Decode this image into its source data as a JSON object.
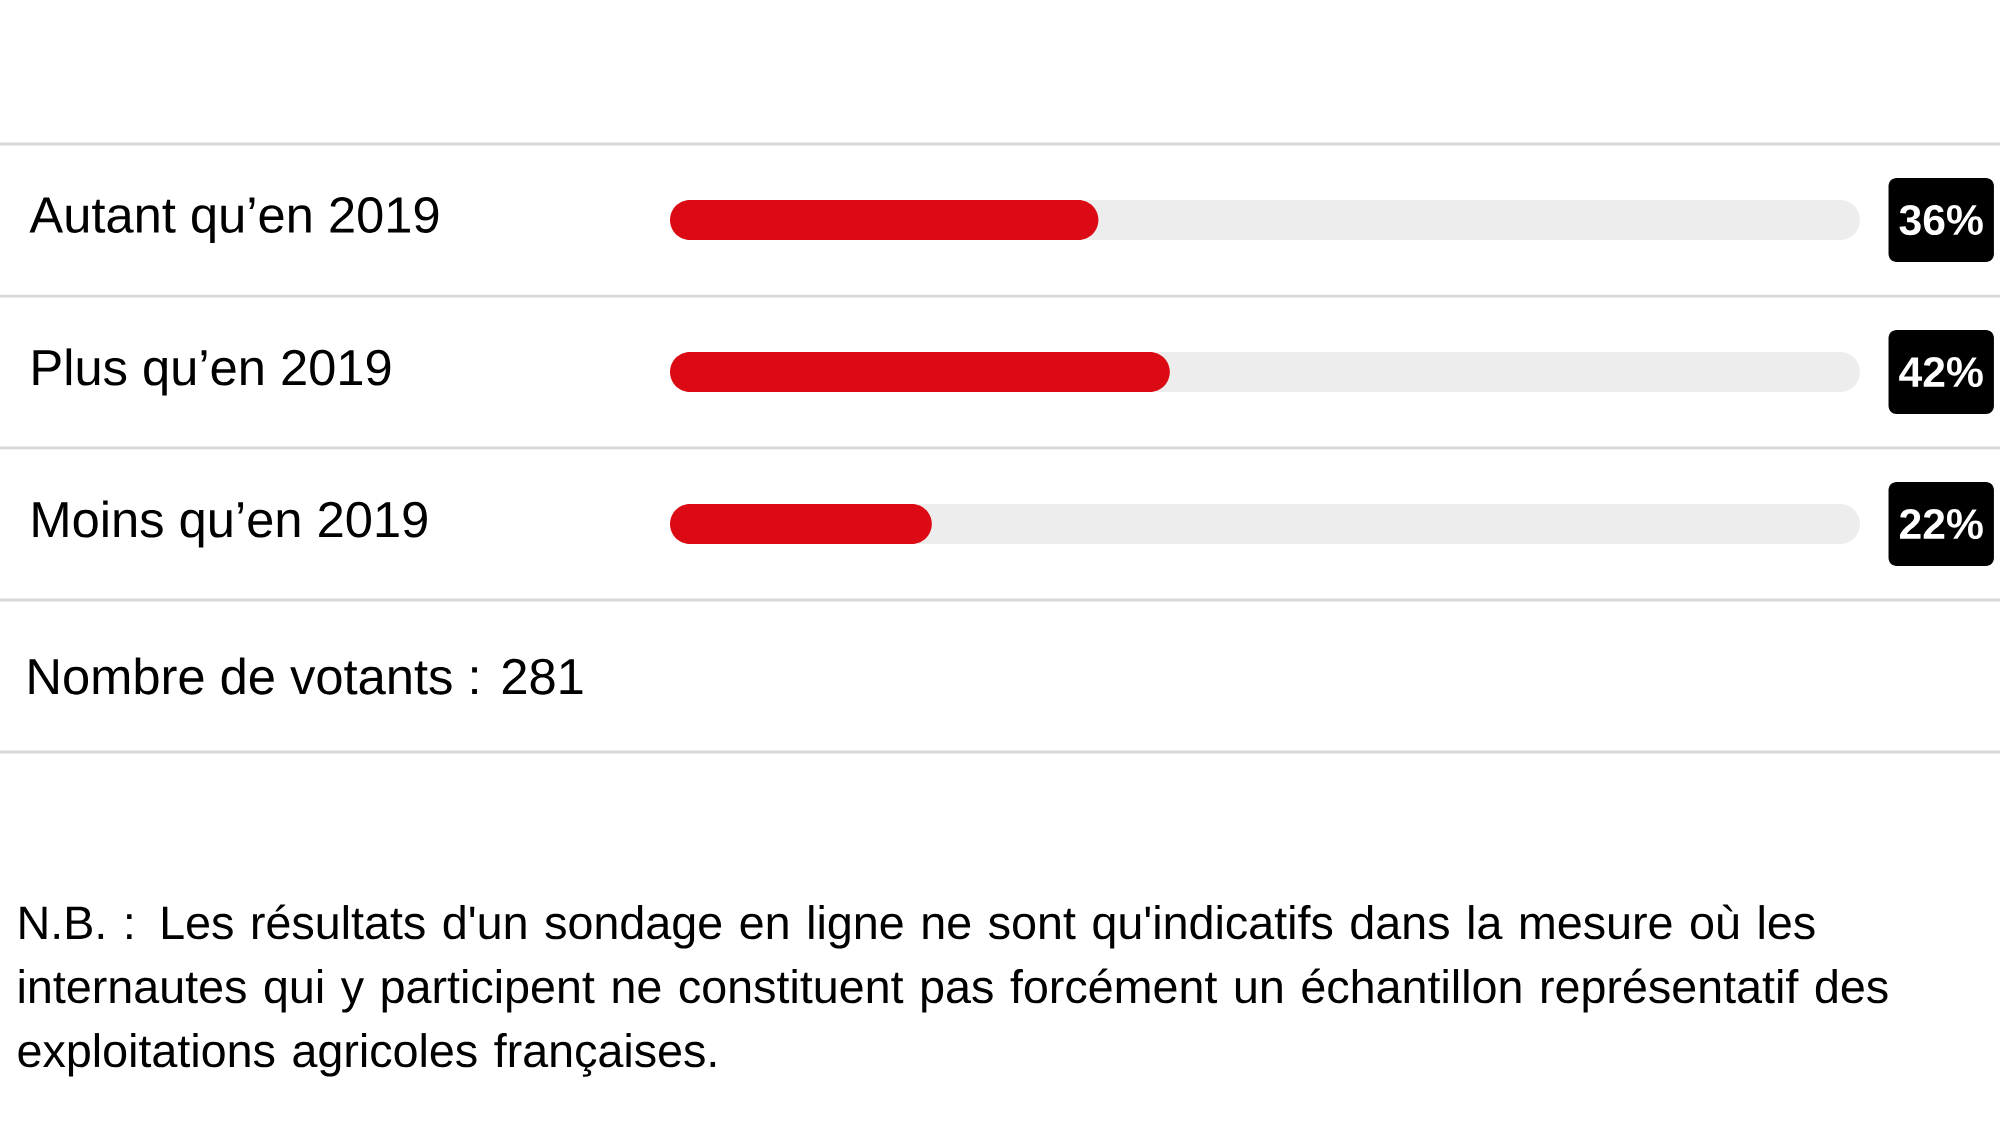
{
  "chart_data": {
    "type": "bar",
    "orientation": "horizontal",
    "categories": [
      "Autant qu’en 2019",
      "Plus qu’en 2019",
      "Moins qu’en 2019"
    ],
    "values": [
      36,
      42,
      22
    ],
    "value_labels": [
      "36%",
      "42%",
      "22%"
    ],
    "color": "#dc0a14",
    "xlim": [
      0,
      100
    ],
    "annotations": [
      "Nombre de votants : 281",
      "N.B. : Les résultats d'un sondage en ligne ne sont qu'indicatifs dans la mesure où les internautes qui y participent ne constituent pas forcément un échantillon représentatif des exploitations agricoles françaises."
    ]
  }
}
